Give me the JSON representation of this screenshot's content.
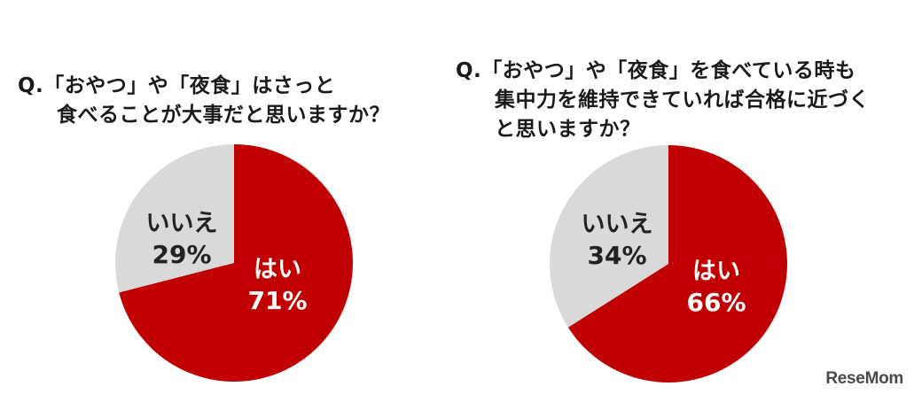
{
  "colors": {
    "yes": "#c00000",
    "no": "#d9d9d9",
    "yes_text": "#ffffff",
    "no_text": "#222222"
  },
  "chart_data": [
    {
      "type": "pie",
      "title": [
        "Q.「おやつ」や「夜食」はさっと",
        "食べることが大事だと思いますか？"
      ],
      "slices": [
        {
          "label": "はい",
          "value": 71,
          "value_label": "71%"
        },
        {
          "label": "いいえ",
          "value": 29,
          "value_label": "29%"
        }
      ]
    },
    {
      "type": "pie",
      "title": [
        "Q.「おやつ」や「夜食」を食べている時も",
        "集中力を維持できていれば合格に近づく",
        "と思いますか？"
      ],
      "slices": [
        {
          "label": "はい",
          "value": 66,
          "value_label": "66%"
        },
        {
          "label": "いいえ",
          "value": 34,
          "value_label": "34%"
        }
      ]
    }
  ],
  "brand": {
    "logo_text": "ReseMom"
  }
}
